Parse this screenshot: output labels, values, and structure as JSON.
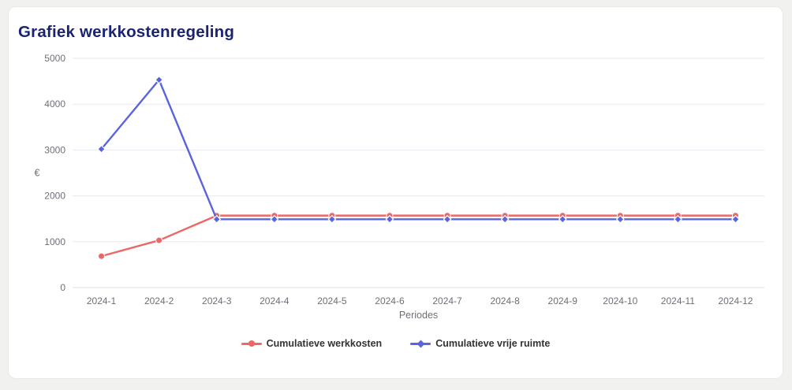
{
  "title": "Grafiek werkkostenregeling",
  "title_color": "#1c2472",
  "page_bg": "#f1f1ef",
  "card_bg": "#ffffff",
  "chart_data": {
    "type": "line",
    "title": "Grafiek werkkostenregeling",
    "categories": [
      "2024-1",
      "2024-2",
      "2024-3",
      "2024-4",
      "2024-5",
      "2024-6",
      "2024-7",
      "2024-8",
      "2024-9",
      "2024-10",
      "2024-11",
      "2024-12"
    ],
    "series": [
      {
        "name": "Cumulatieve werkkosten",
        "color": "#ee6666",
        "symbol": "circle",
        "values": [
          685,
          1030,
          1570,
          1570,
          1570,
          1570,
          1570,
          1570,
          1570,
          1570,
          1570,
          1570
        ]
      },
      {
        "name": "Cumulatieve vrije ruimte",
        "color": "#5a64dc",
        "symbol": "diamond",
        "values": [
          3020,
          4530,
          1490,
          1490,
          1490,
          1490,
          1490,
          1490,
          1490,
          1490,
          1490,
          1490
        ]
      }
    ],
    "xlabel": "Periodes",
    "ylabel": "€",
    "yticks": [
      0,
      1000,
      2000,
      3000,
      4000,
      5000
    ],
    "ylim": [
      0,
      5000
    ],
    "grid": true,
    "gridline_color": "#e6e9f1",
    "zeroline_color": "#dde2ee",
    "axis_text_color": "#6e7079",
    "legend_position": "bottom",
    "legend_text_color": "#333333"
  }
}
